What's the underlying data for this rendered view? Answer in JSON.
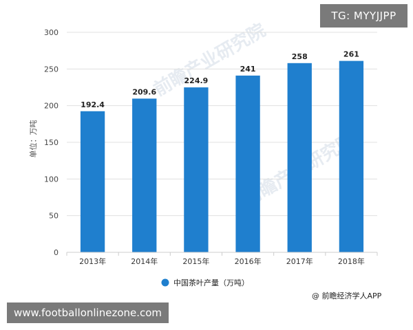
{
  "overlays": {
    "tag": "TG: MYYJJPP",
    "site": "www.footballonlinezone.com"
  },
  "watermark": "前瞻产业研究院",
  "source": "@ 前瞻经济学人APP",
  "colors": {
    "bar": "#1f7fce",
    "grid": "#e0e0e0",
    "overlay": "#7a7a7a"
  },
  "chart_data": {
    "type": "bar",
    "categories": [
      "2013年",
      "2014年",
      "2015年",
      "2016年",
      "2017年",
      "2018年"
    ],
    "series": [
      {
        "name": "中国茶叶产量（万吨）",
        "values": [
          192.4,
          209.6,
          224.9,
          241,
          258,
          261
        ]
      }
    ],
    "data_labels": [
      "192.4",
      "209.6",
      "224.9",
      "241",
      "258",
      "261"
    ],
    "ylabel": "单位：万吨",
    "xlabel": "",
    "title": "",
    "ylim": [
      0,
      300
    ],
    "yticks": [
      0,
      50,
      100,
      150,
      200,
      250,
      300
    ],
    "grid": true,
    "legend_position": "bottom-center"
  }
}
